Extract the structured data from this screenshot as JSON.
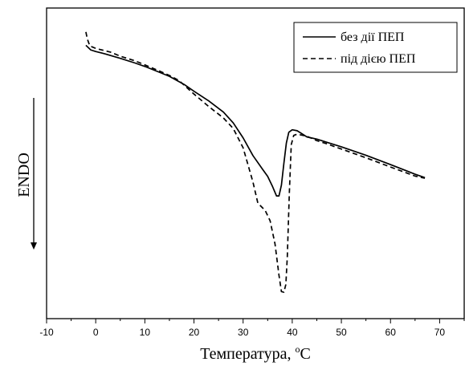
{
  "chart_data": {
    "type": "line",
    "xlabel_main": "Температура, ",
    "xlabel_sup": "o",
    "xlabel_unit": "C",
    "ylabel": "ENDO",
    "xlim": [
      -10,
      75
    ],
    "ylim": [
      0,
      100
    ],
    "xticks": [
      "-10",
      "0",
      "10",
      "20",
      "30",
      "40",
      "50",
      "60",
      "70"
    ],
    "legend_position": "top-right",
    "grid": false,
    "series": [
      {
        "name": "без дії ПЕП",
        "style": "solid",
        "color": "#000000",
        "points": [
          [
            -2,
            88
          ],
          [
            -1,
            86.5
          ],
          [
            0,
            86
          ],
          [
            2,
            85.2
          ],
          [
            5,
            83.8
          ],
          [
            8,
            82.3
          ],
          [
            10,
            81.2
          ],
          [
            13,
            79.3
          ],
          [
            15,
            78
          ],
          [
            18,
            75.4
          ],
          [
            20,
            73.2
          ],
          [
            23,
            70.1
          ],
          [
            26,
            66.5
          ],
          [
            28,
            63
          ],
          [
            30,
            58.2
          ],
          [
            32,
            52.5
          ],
          [
            34,
            48
          ],
          [
            35,
            45.8
          ],
          [
            36,
            42.5
          ],
          [
            36.8,
            39.5
          ],
          [
            37.3,
            39.5
          ],
          [
            37.8,
            43
          ],
          [
            38.3,
            50
          ],
          [
            38.8,
            56.5
          ],
          [
            39.3,
            60
          ],
          [
            40,
            60.8
          ],
          [
            41,
            60.5
          ],
          [
            42,
            59.5
          ],
          [
            43,
            58.5
          ],
          [
            45,
            57.8
          ],
          [
            47,
            56.8
          ],
          [
            50,
            55.3
          ],
          [
            55,
            52.6
          ],
          [
            60,
            49.6
          ],
          [
            65,
            46.5
          ],
          [
            67,
            45.4
          ]
        ]
      },
      {
        "name": "під дією ПЕП",
        "style": "dashed",
        "color": "#000000",
        "points": [
          [
            -2,
            92.3
          ],
          [
            -1.7,
            90
          ],
          [
            -1.2,
            87.8
          ],
          [
            0,
            87
          ],
          [
            3,
            85.8
          ],
          [
            5,
            84.5
          ],
          [
            8,
            83
          ],
          [
            10,
            81.7
          ],
          [
            13,
            79.7
          ],
          [
            15,
            78.3
          ],
          [
            17,
            76.6
          ],
          [
            20,
            72.3
          ],
          [
            23,
            68.3
          ],
          [
            26,
            64.6
          ],
          [
            28,
            61.2
          ],
          [
            30,
            55
          ],
          [
            32,
            44
          ],
          [
            33,
            37.2
          ],
          [
            34.5,
            34.8
          ],
          [
            35.5,
            31.5
          ],
          [
            36.5,
            24
          ],
          [
            37.3,
            14
          ],
          [
            37.8,
            8.7
          ],
          [
            38.3,
            8.5
          ],
          [
            38.7,
            11
          ],
          [
            39,
            20
          ],
          [
            39.4,
            40
          ],
          [
            39.8,
            56
          ],
          [
            40.3,
            59
          ],
          [
            41,
            59.4
          ],
          [
            43,
            58.7
          ],
          [
            45,
            57.3
          ],
          [
            47,
            56.3
          ],
          [
            50,
            54.6
          ],
          [
            55,
            51.8
          ],
          [
            60,
            48.8
          ],
          [
            65,
            45.9
          ],
          [
            67,
            45.2
          ]
        ]
      }
    ]
  }
}
